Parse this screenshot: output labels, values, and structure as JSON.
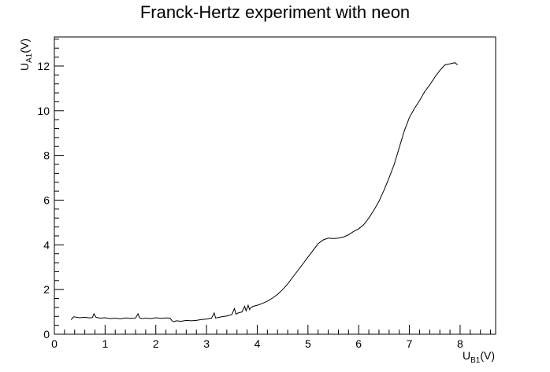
{
  "chart_data": {
    "type": "line",
    "title": "Franck-Hertz experiment with neon",
    "xlabel": {
      "main": "U",
      "sub": "B1",
      "unit": "(V)"
    },
    "ylabel": {
      "main": "U",
      "sub": "A1",
      "unit": "(V)"
    },
    "xlim": [
      0,
      8.7
    ],
    "ylim": [
      0,
      13.3
    ],
    "x_ticks": [
      0,
      1,
      2,
      3,
      4,
      5,
      6,
      7,
      8
    ],
    "y_ticks": [
      0,
      2,
      4,
      6,
      8,
      10,
      12
    ],
    "grid": false,
    "line_color": "#000000",
    "series": [
      {
        "x": [
          0.33,
          0.38,
          0.5,
          0.6,
          0.7,
          0.75,
          0.78,
          0.82,
          0.9,
          1.0,
          1.1,
          1.2,
          1.3,
          1.4,
          1.5,
          1.6,
          1.65,
          1.68,
          1.72,
          1.8,
          1.9,
          2.0,
          2.1,
          2.2,
          2.28,
          2.32,
          2.36,
          2.4,
          2.5,
          2.6,
          2.7,
          2.8,
          2.9,
          3.0,
          3.1,
          3.15,
          3.18,
          3.22,
          3.3,
          3.4,
          3.5,
          3.55,
          3.58,
          3.62,
          3.7,
          3.75,
          3.78,
          3.82,
          3.85,
          3.88,
          3.92,
          4.0,
          4.1,
          4.2,
          4.3,
          4.4,
          4.5,
          4.6,
          4.7,
          4.8,
          4.9,
          5.0,
          5.1,
          5.2,
          5.3,
          5.4,
          5.5,
          5.6,
          5.7,
          5.8,
          5.9,
          6.0,
          6.1,
          6.2,
          6.3,
          6.4,
          6.5,
          6.6,
          6.7,
          6.8,
          6.9,
          7.0,
          7.1,
          7.2,
          7.3,
          7.4,
          7.5,
          7.6,
          7.7,
          7.8,
          7.9,
          7.95
        ],
        "y": [
          0.65,
          0.78,
          0.74,
          0.76,
          0.73,
          0.75,
          0.92,
          0.76,
          0.72,
          0.74,
          0.7,
          0.72,
          0.69,
          0.73,
          0.71,
          0.72,
          0.92,
          0.74,
          0.7,
          0.72,
          0.7,
          0.74,
          0.71,
          0.73,
          0.72,
          0.6,
          0.56,
          0.6,
          0.58,
          0.62,
          0.6,
          0.62,
          0.66,
          0.68,
          0.72,
          0.95,
          0.72,
          0.75,
          0.78,
          0.82,
          0.88,
          1.15,
          0.9,
          0.95,
          1.0,
          1.25,
          1.05,
          1.3,
          1.1,
          1.2,
          1.25,
          1.3,
          1.38,
          1.48,
          1.62,
          1.78,
          2.0,
          2.25,
          2.55,
          2.85,
          3.15,
          3.45,
          3.75,
          4.05,
          4.22,
          4.3,
          4.28,
          4.3,
          4.35,
          4.45,
          4.6,
          4.72,
          4.9,
          5.2,
          5.55,
          5.95,
          6.45,
          7.0,
          7.6,
          8.35,
          9.1,
          9.7,
          10.1,
          10.45,
          10.85,
          11.15,
          11.5,
          11.8,
          12.05,
          12.1,
          12.15,
          12.05
        ]
      }
    ]
  }
}
